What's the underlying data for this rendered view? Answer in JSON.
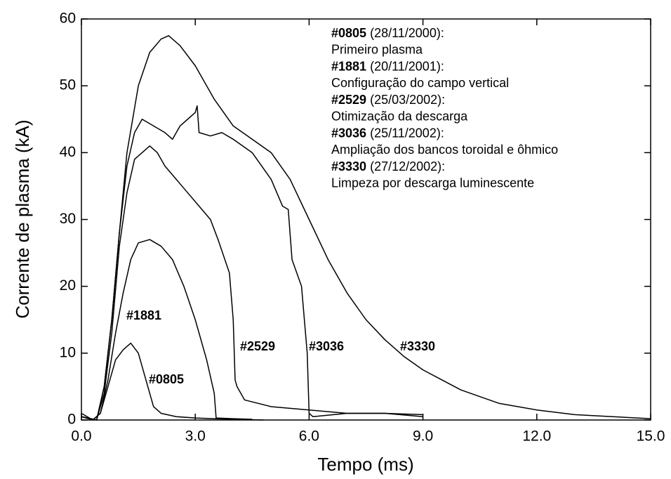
{
  "chart_data": {
    "type": "line",
    "x_label": "Tempo (ms)",
    "y_label": "Corrente de plasma (kA)",
    "xlim": [
      0,
      15
    ],
    "ylim": [
      0,
      60
    ],
    "xticks": [
      {
        "value": 0,
        "label": "0.0"
      },
      {
        "value": 3,
        "label": "3.0"
      },
      {
        "value": 6,
        "label": "6.0"
      },
      {
        "value": 9,
        "label": "9.0"
      },
      {
        "value": 12,
        "label": "12.0"
      },
      {
        "value": 15,
        "label": "15.0"
      }
    ],
    "yticks": [
      0,
      10,
      20,
      30,
      40,
      50,
      60
    ],
    "color": "#000000",
    "series": [
      {
        "name": "#0805",
        "x": [
          0,
          0.3,
          0.5,
          0.7,
          0.9,
          1.1,
          1.3,
          1.5,
          1.7,
          1.9,
          2.1,
          2.5,
          3.0,
          3.5,
          4.0,
          4.8
        ],
        "values": [
          0.5,
          0,
          1,
          5,
          9,
          10.5,
          11.5,
          10,
          6,
          2,
          1,
          0.5,
          0.3,
          0.2,
          0.1,
          0
        ]
      },
      {
        "name": "#1881",
        "x": [
          0,
          0.3,
          0.5,
          0.7,
          0.9,
          1.1,
          1.3,
          1.5,
          1.8,
          2.1,
          2.4,
          2.7,
          3.0,
          3.3,
          3.5,
          3.55,
          4.0,
          4.5
        ],
        "values": [
          1,
          0,
          1,
          6,
          13,
          19,
          24,
          26.5,
          27,
          26,
          24,
          20,
          15,
          9,
          4,
          0.3,
          0.2,
          0.1
        ]
      },
      {
        "name": "#2529",
        "x": [
          0,
          0.4,
          0.6,
          0.8,
          1.0,
          1.2,
          1.4,
          1.6,
          1.8,
          2.0,
          2.2,
          2.5,
          2.8,
          3.1,
          3.4,
          3.6,
          3.9,
          4.0,
          4.05,
          4.1,
          4.3,
          5,
          6,
          7,
          8,
          9
        ],
        "values": [
          0.5,
          0,
          4,
          13,
          26,
          34,
          39,
          40,
          41,
          40,
          38,
          36,
          34,
          32,
          30,
          27,
          22,
          15,
          6,
          5,
          3,
          2,
          1.5,
          1,
          1,
          0.5
        ]
      },
      {
        "name": "#3036",
        "x": [
          0,
          0.4,
          0.6,
          0.8,
          1.0,
          1.2,
          1.4,
          1.6,
          1.9,
          2.2,
          2.4,
          2.6,
          2.8,
          3.0,
          3.05,
          3.1,
          3.4,
          3.7,
          4.0,
          4.5,
          5.0,
          5.3,
          5.45,
          5.55,
          5.8,
          5.95,
          6.0,
          6.1,
          7,
          8,
          9
        ],
        "values": [
          0.5,
          0,
          5,
          15,
          28,
          38,
          43,
          45,
          44,
          43,
          42,
          44,
          45,
          46,
          47,
          43,
          42.5,
          43,
          42,
          40,
          36,
          32,
          31.5,
          24,
          20,
          10,
          1,
          0.5,
          1,
          1,
          0.8
        ]
      },
      {
        "name": "#3330",
        "x": [
          0,
          0.4,
          0.6,
          0.8,
          1.0,
          1.2,
          1.5,
          1.8,
          2.1,
          2.3,
          2.6,
          3.0,
          3.5,
          4.0,
          4.5,
          5.0,
          5.5,
          6.0,
          6.5,
          7.0,
          7.5,
          8.0,
          8.5,
          9.0,
          9.5,
          10,
          11,
          12,
          13,
          14,
          15
        ],
        "values": [
          0.5,
          0,
          5,
          15,
          28,
          40,
          50,
          55,
          57,
          57.5,
          56,
          53,
          48,
          44,
          42,
          40,
          36,
          30,
          24,
          19,
          15,
          12,
          9.5,
          7.5,
          6,
          4.5,
          2.5,
          1.5,
          0.8,
          0.5,
          0.2
        ]
      }
    ],
    "annotations": [
      {
        "date": "(28/11/2000):",
        "description": "Primeiro plasma"
      },
      {
        "date": "(20/11/2001):",
        "description": "Configuração do campo vertical"
      },
      {
        "date": "(25/03/2002):",
        "description": "Otimização da descarga"
      },
      {
        "date": "(25/11/2002):",
        "description": "Ampliação dos bancos toroidal e ôhmico"
      },
      {
        "date": "(27/12/2002):",
        "description": "Limpeza por descarga luminescente"
      }
    ]
  }
}
